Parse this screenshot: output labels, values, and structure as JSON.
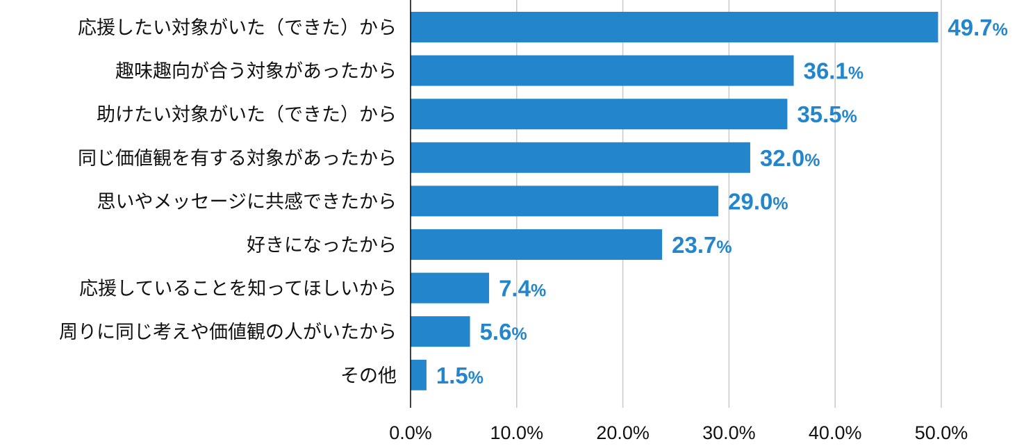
{
  "chart_data": {
    "type": "bar",
    "orientation": "horizontal",
    "title": "",
    "xlabel": "",
    "ylabel": "",
    "categories": [
      "応援したい対象がいた（できた）から",
      "趣味趣向が合う対象があったから",
      "助けたい対象がいた（できた）から",
      "同じ価値観を有する対象があったから",
      "思いやメッセージに共感できたから",
      "好きになったから",
      "応援していることを知ってほしいから",
      "周りに同じ考えや価値観の人がいたから",
      "その他"
    ],
    "values": [
      49.7,
      36.1,
      35.5,
      32.0,
      29.0,
      23.7,
      7.4,
      5.6,
      1.5
    ],
    "value_labels": [
      "49.7",
      "36.1",
      "35.5",
      "32.0",
      "29.0",
      "23.7",
      "7.4",
      "5.6",
      "1.5"
    ],
    "value_suffix": "%",
    "xlim": [
      0,
      50
    ],
    "x_ticks": [
      0,
      10,
      20,
      30,
      40,
      50
    ],
    "x_tick_labels": [
      "0.0%",
      "10.0%",
      "20.0%",
      "30.0%",
      "40.0%",
      "50.0%"
    ],
    "grid": "vertical",
    "colors": {
      "bar": "#2386cc",
      "label": "#2386cc",
      "grid": "#c8c8c8",
      "axis": "#000000"
    }
  }
}
